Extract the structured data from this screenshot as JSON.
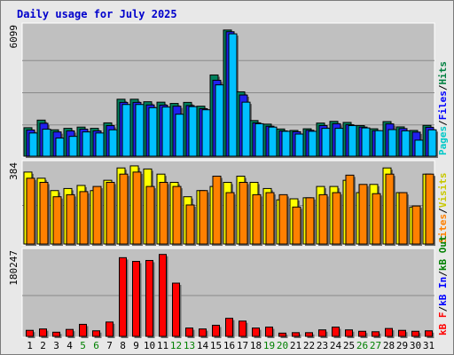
{
  "chart_data": {
    "type": "bar",
    "title": "Daily usage for July 2025",
    "categories": [
      "1",
      "2",
      "3",
      "4",
      "5",
      "6",
      "7",
      "8",
      "9",
      "10",
      "11",
      "12",
      "13",
      "14",
      "15",
      "16",
      "17",
      "18",
      "19",
      "20",
      "21",
      "22",
      "23",
      "24",
      "25",
      "26",
      "27",
      "28",
      "29",
      "30",
      "31"
    ],
    "weekend_days": [
      5,
      6,
      12,
      13,
      19,
      20,
      26,
      27
    ],
    "panels": [
      {
        "name": "hits-files-pages",
        "max_label": "6099",
        "max": 6099,
        "legend": [
          {
            "text": "Pages",
            "color": "#00c8c8"
          },
          {
            "text": "/",
            "color": "#000000"
          },
          {
            "text": "Files",
            "color": "#0000ff"
          },
          {
            "text": "/",
            "color": "#000000"
          },
          {
            "text": "Hits",
            "color": "#008040"
          }
        ],
        "series": [
          {
            "key": "hits",
            "color": "#00805c",
            "values": [
              1350,
              1710,
              1250,
              1320,
              1380,
              1320,
              1580,
              2700,
              2700,
              2580,
              2560,
              2500,
              2550,
              2370,
              3850,
              5980,
              3050,
              1690,
              1520,
              1290,
              1220,
              1300,
              1570,
              1650,
              1600,
              1450,
              1300,
              1640,
              1390,
              1220,
              1460
            ]
          },
          {
            "key": "files",
            "color": "#2020ee",
            "values": [
              1240,
              1560,
              1150,
              1200,
              1280,
              1200,
              1450,
              2550,
              2550,
              2430,
              2420,
              2370,
              2400,
              2250,
              3600,
              5900,
              2900,
              1580,
              1420,
              1200,
              1160,
              1230,
              1450,
              1540,
              1490,
              1380,
              1210,
              1530,
              1310,
              1140,
              1370
            ]
          },
          {
            "key": "pages",
            "color": "#00c0ff",
            "values": [
              1100,
              1280,
              860,
              940,
              1150,
              1100,
              1250,
              2450,
              2450,
              2300,
              2330,
              1990,
              2350,
              2200,
              3380,
              5800,
              2560,
              1540,
              1380,
              1180,
              1050,
              1180,
              1320,
              1320,
              1450,
              1340,
              1210,
              1260,
              1200,
              760,
              1250
            ]
          }
        ]
      },
      {
        "name": "visits-sites",
        "max_label": "384",
        "max": 384,
        "legend": [
          {
            "text": "Sites",
            "color": "#ff8000"
          },
          {
            "text": "/",
            "color": "#000000"
          },
          {
            "text": "Visits",
            "color": "#c8c800"
          }
        ],
        "series": [
          {
            "key": "visits",
            "color": "#ffff00",
            "values": [
              350,
              320,
              260,
              270,
              285,
              260,
              310,
              370,
              380,
              365,
              340,
              300,
              230,
              260,
              280,
              300,
              330,
              300,
              270,
              215,
              220,
              225,
              280,
              280,
              310,
              250,
              290,
              370,
              250,
              180,
              340
            ]
          },
          {
            "key": "sites",
            "color": "#ff8000",
            "values": [
              320,
              300,
              230,
              240,
              255,
              280,
              300,
              340,
              350,
              280,
              300,
              280,
              190,
              260,
              330,
              250,
              300,
              240,
              250,
              240,
              180,
              225,
              240,
              250,
              335,
              290,
              245,
              340,
              250,
              185,
              340
            ]
          }
        ]
      },
      {
        "name": "kbytes",
        "max_label": "180247",
        "max": 180247,
        "legend": [
          {
            "text": "kB F",
            "color": "#ff0000"
          },
          {
            "text": "/",
            "color": "#000000"
          },
          {
            "text": "kB In",
            "color": "#0000ff"
          },
          {
            "text": "/",
            "color": "#000000"
          },
          {
            "text": "kB Out",
            "color": "#008000"
          }
        ],
        "series": [
          {
            "key": "kbf",
            "color": "#ff0000",
            "values": [
              13000,
              16000,
              9000,
              15000,
              26000,
              12000,
              31000,
              170000,
              162000,
              164000,
              177000,
              115000,
              18000,
              16000,
              24000,
              39000,
              33000,
              18000,
              20000,
              7000,
              8000,
              8000,
              14000,
              20000,
              14000,
              11000,
              10000,
              17000,
              13000,
              11000,
              12000
            ]
          }
        ]
      }
    ]
  }
}
